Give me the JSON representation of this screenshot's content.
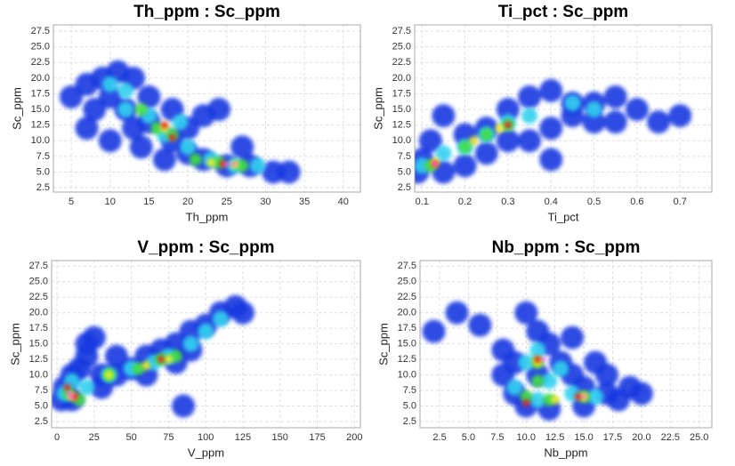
{
  "chart_data": [
    {
      "type": "scatter",
      "title": "Th_ppm : Sc_ppm",
      "xlabel": "Th_ppm",
      "ylabel": "Sc_ppm",
      "xlim": [
        2.7,
        42.2
      ],
      "ylim": [
        1.8,
        28.5
      ],
      "xticks": [
        5,
        10,
        15,
        20,
        25,
        30,
        35,
        40
      ],
      "yticks": [
        2.5,
        {
          "value": 5,
          "label": "5.0"
        },
        7.5,
        {
          "value": 10,
          "label": "10.0"
        },
        12.5,
        {
          "value": 15,
          "label": "15.0"
        },
        17.5,
        {
          "value": 20,
          "label": "20.0"
        },
        22.5,
        {
          "value": 25,
          "label": "25.0"
        },
        27.5
      ],
      "grid": true,
      "layers": [
        {
          "color": "#1838e0",
          "x": [
            5,
            7,
            9,
            11,
            13,
            10,
            12,
            8,
            15,
            18,
            20,
            22,
            25,
            28,
            31,
            33,
            14,
            17,
            20,
            22,
            24,
            15,
            18,
            13,
            7,
            10,
            27
          ],
          "values": [
            17,
            19,
            20,
            21,
            20,
            17,
            15,
            15,
            13,
            10,
            8,
            7,
            6,
            6,
            5,
            5,
            9,
            7,
            12,
            14,
            15,
            17,
            15,
            12,
            12,
            10,
            9
          ]
        },
        {
          "color": "#30d0f0",
          "x": [
            10,
            12,
            15,
            17,
            20,
            23,
            26,
            29,
            12,
            19
          ],
          "values": [
            19,
            18,
            14,
            11,
            9,
            7,
            6,
            6,
            15,
            13
          ]
        },
        {
          "color": "#40e040",
          "x": [
            16,
            18,
            21,
            24,
            27,
            14
          ],
          "values": [
            12,
            11,
            7,
            6.5,
            6,
            15
          ]
        },
        {
          "color": "#f0f020",
          "x": [
            17,
            23,
            26
          ],
          "values": [
            12,
            6.5,
            6.2
          ]
        },
        {
          "color": "#f02020",
          "x": [
            17,
            24.5,
            18
          ],
          "values": [
            12.5,
            6.3,
            10.5
          ]
        },
        {
          "color": "#ff60ff",
          "x": [
            25,
            26
          ],
          "values": [
            6.2,
            6.3
          ]
        }
      ]
    },
    {
      "type": "scatter",
      "title": "Ti_pct : Sc_ppm",
      "xlabel": "Ti_pct",
      "ylabel": "Sc_ppm",
      "xlim": [
        0.083,
        0.774
      ],
      "ylim": [
        1.8,
        28.5
      ],
      "xticks": [
        0.1,
        0.2,
        0.3,
        0.4,
        0.5,
        0.6,
        0.7
      ],
      "yticks": [
        2.5,
        {
          "value": 5,
          "label": "5.0"
        },
        7.5,
        {
          "value": 10,
          "label": "10.0"
        },
        12.5,
        {
          "value": 15,
          "label": "15.0"
        },
        17.5,
        {
          "value": 20,
          "label": "20.0"
        },
        22.5,
        {
          "value": 25,
          "label": "25.0"
        },
        27.5
      ],
      "grid": true,
      "layers": [
        {
          "color": "#1838e0",
          "x": [
            0.09,
            0.1,
            0.12,
            0.15,
            0.2,
            0.25,
            0.3,
            0.35,
            0.4,
            0.45,
            0.5,
            0.55,
            0.6,
            0.65,
            0.7,
            0.35,
            0.4,
            0.2,
            0.25,
            0.3,
            0.5,
            0.45,
            0.55,
            0.4,
            0.15
          ],
          "values": [
            5,
            7,
            10,
            14,
            11,
            12,
            15,
            17,
            18,
            16,
            16,
            17,
            15,
            13,
            14,
            10,
            12,
            6,
            8,
            10,
            13,
            14,
            13,
            7,
            5
          ]
        },
        {
          "color": "#30d0f0",
          "x": [
            0.1,
            0.15,
            0.2,
            0.25,
            0.3,
            0.35,
            0.45,
            0.5
          ],
          "values": [
            6,
            8,
            9,
            11,
            13,
            14,
            16,
            15
          ]
        },
        {
          "color": "#40e040",
          "x": [
            0.12,
            0.2,
            0.25,
            0.3
          ],
          "values": [
            6,
            9,
            11,
            12.5
          ]
        },
        {
          "color": "#f0f020",
          "x": [
            0.13,
            0.28,
            0.22
          ],
          "values": [
            6.5,
            12,
            10
          ]
        },
        {
          "color": "#f02020",
          "x": [
            0.13,
            0.3
          ],
          "values": [
            6.3,
            12.5
          ]
        },
        {
          "color": "#ff60ff",
          "x": [
            0.13
          ],
          "values": [
            6.3
          ]
        }
      ]
    },
    {
      "type": "scatter",
      "title": "V_ppm : Sc_ppm",
      "xlabel": "V_ppm",
      "ylabel": "Sc_ppm",
      "xlim": [
        -3.6,
        204
      ],
      "ylim": [
        1.5,
        28.4
      ],
      "xticks": [
        0,
        25,
        50,
        75,
        100,
        125,
        150,
        175,
        200
      ],
      "yticks": [
        2.5,
        {
          "value": 5,
          "label": "5.0"
        },
        7.5,
        {
          "value": 10,
          "label": "10.0"
        },
        12.5,
        {
          "value": 15,
          "label": "15.0"
        },
        17.5,
        {
          "value": 20,
          "label": "20.0"
        },
        22.5,
        {
          "value": 25,
          "label": "25.0"
        },
        27.5
      ],
      "grid": true,
      "layers": [
        {
          "color": "#1838e0",
          "x": [
            3,
            5,
            10,
            15,
            20,
            30,
            40,
            50,
            60,
            70,
            80,
            90,
            100,
            110,
            120,
            125,
            80,
            90,
            20,
            25,
            60,
            40,
            85,
            10,
            30
          ],
          "values": [
            6,
            8,
            10,
            11,
            13,
            10,
            10,
            11,
            13,
            14,
            15,
            17,
            18,
            20,
            21,
            20,
            12,
            14,
            15,
            16,
            10,
            13,
            5,
            6,
            8
          ]
        },
        {
          "color": "#30d0f0",
          "x": [
            5,
            10,
            20,
            35,
            50,
            65,
            75,
            90,
            100,
            110
          ],
          "values": [
            7,
            9,
            8,
            10,
            11,
            12,
            13,
            15,
            17,
            19
          ]
        },
        {
          "color": "#40e040",
          "x": [
            8,
            15,
            55,
            70,
            80,
            35
          ],
          "values": [
            7,
            6,
            11,
            12.5,
            13,
            10
          ]
        },
        {
          "color": "#f0f020",
          "x": [
            10,
            60,
            75,
            35
          ],
          "values": [
            6.5,
            11.5,
            12.5,
            10
          ]
        },
        {
          "color": "#f02020",
          "x": [
            12,
            7,
            70
          ],
          "values": [
            6.5,
            8,
            12.5
          ]
        },
        {
          "color": "#ff60ff",
          "x": [
            10,
            8
          ],
          "values": [
            6.5,
            7
          ]
        }
      ]
    },
    {
      "type": "scatter",
      "title": "Nb_ppm : Sc_ppm",
      "xlabel": "Nb_ppm",
      "ylabel": "Sc_ppm",
      "xlim": [
        0.8,
        26.1
      ],
      "ylim": [
        1.5,
        28.4
      ],
      "xticks": [
        2.5,
        {
          "value": 5,
          "label": "5.0"
        },
        7.5,
        {
          "value": 10,
          "label": "10.0"
        },
        12.5,
        {
          "value": 15,
          "label": "15.0"
        },
        17.5,
        {
          "value": 20,
          "label": "20.0"
        },
        22.5,
        {
          "value": 25,
          "label": "25.0"
        }
      ],
      "yticks": [
        2.5,
        {
          "value": 5,
          "label": "5.0"
        },
        7.5,
        {
          "value": 10,
          "label": "10.0"
        },
        12.5,
        {
          "value": 15,
          "label": "15.0"
        },
        17.5,
        {
          "value": 20,
          "label": "20.0"
        },
        22.5,
        {
          "value": 25,
          "label": "25.0"
        },
        27.5
      ],
      "grid": true,
      "layers": [
        {
          "color": "#1838e0",
          "x": [
            2,
            4,
            6,
            8,
            8,
            9,
            10,
            11,
            12,
            13,
            14,
            15,
            17,
            18,
            19,
            10,
            12,
            15,
            16,
            11,
            14,
            20,
            17,
            9
          ],
          "values": [
            17,
            20,
            18,
            14,
            10,
            7,
            20,
            17,
            15,
            12,
            10,
            8,
            7,
            6,
            8,
            5,
            4.5,
            5,
            12,
            10,
            16,
            7,
            10,
            12
          ]
        },
        {
          "color": "#30d0f0",
          "x": [
            10,
            11,
            9,
            11,
            14,
            16,
            12,
            13
          ],
          "values": [
            12,
            14,
            8,
            6,
            7,
            6.5,
            9,
            11
          ]
        },
        {
          "color": "#40e040",
          "x": [
            11,
            10,
            12,
            15,
            11
          ],
          "values": [
            12,
            6.5,
            6,
            6.5,
            9
          ]
        },
        {
          "color": "#f0f020",
          "x": [
            11,
            12.5,
            15
          ],
          "values": [
            12,
            6,
            6.5
          ]
        },
        {
          "color": "#f02020",
          "x": [
            11,
            10,
            14.5
          ],
          "values": [
            12.5,
            5.5,
            6.5
          ]
        },
        {
          "color": "#ff60ff",
          "x": [
            11.5,
            15
          ],
          "values": [
            12.5,
            6.5
          ]
        }
      ]
    }
  ]
}
